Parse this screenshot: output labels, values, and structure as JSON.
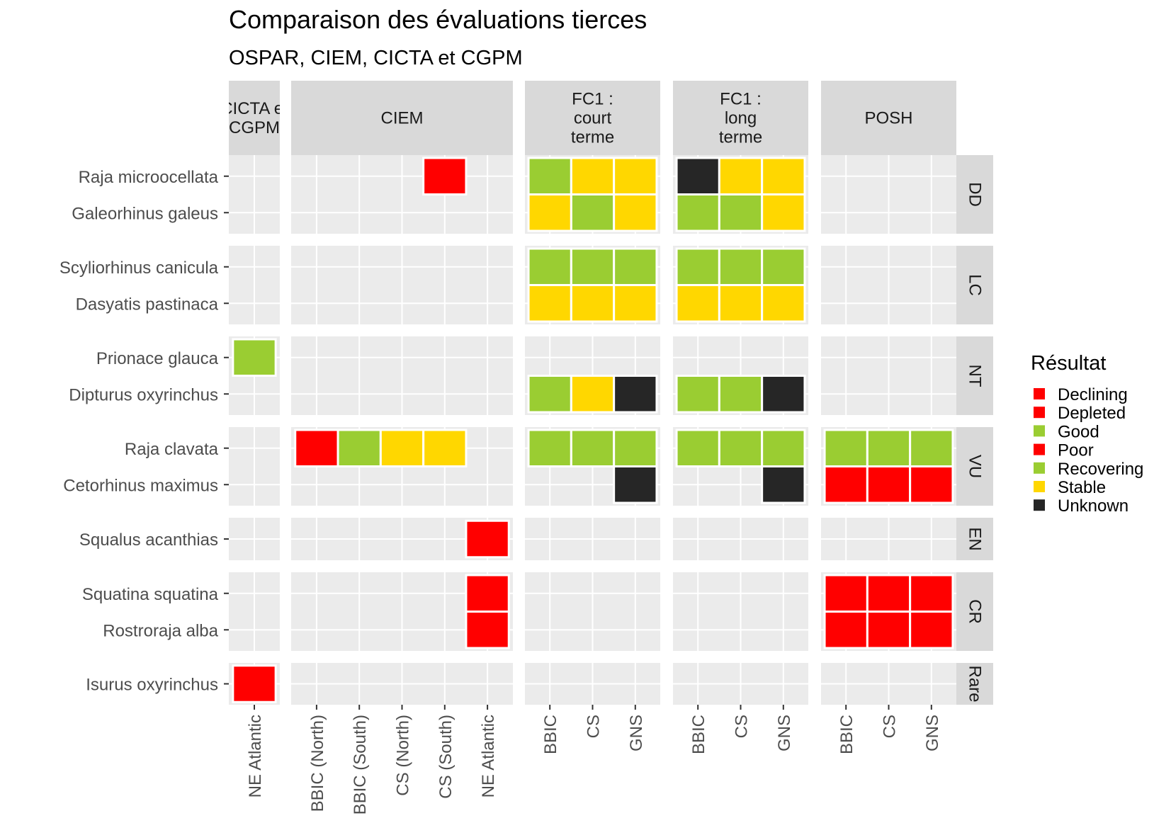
{
  "chart_data": {
    "type": "heatmap",
    "title": "Comparaison des évaluations tierces",
    "subtitle": "OSPAR, CIEM, CICTA et CGPM",
    "legend": {
      "title": "Résultat",
      "position": "right",
      "entries": [
        {
          "label": "Declining",
          "color": "#FF0000"
        },
        {
          "label": "Depleted",
          "color": "#FF0000"
        },
        {
          "label": "Good",
          "color": "#9ACD32"
        },
        {
          "label": "Poor",
          "color": "#FF0000"
        },
        {
          "label": "Recovering",
          "color": "#9ACD32"
        },
        {
          "label": "Stable",
          "color": "#FFD700"
        },
        {
          "label": "Unknown",
          "color": "#262626"
        }
      ]
    },
    "column_panels": [
      {
        "label": [
          "CICTA et",
          "CGPM"
        ],
        "x": [
          "NE Atlantic"
        ]
      },
      {
        "label": [
          "CIEM"
        ],
        "x": [
          "BBIC (North)",
          "BBIC (South)",
          "CS (North)",
          "CS (South)",
          "NE Atlantic"
        ]
      },
      {
        "label": [
          "FC1 :",
          "court",
          "terme"
        ],
        "x": [
          "BBIC",
          "CS",
          "GNS"
        ]
      },
      {
        "label": [
          "FC1 :",
          "long",
          "terme"
        ],
        "x": [
          "BBIC",
          "CS",
          "GNS"
        ]
      },
      {
        "label": [
          "POSH"
        ],
        "x": [
          "BBIC",
          "CS",
          "GNS"
        ]
      }
    ],
    "row_panels": [
      {
        "label": "DD",
        "species": [
          "Raja microocellata",
          "Galeorhinus galeus"
        ]
      },
      {
        "label": "LC",
        "species": [
          "Scyliorhinus canicula",
          "Dasyatis pastinaca"
        ]
      },
      {
        "label": "NT",
        "species": [
          "Prionace glauca",
          "Dipturus oxyrinchus"
        ]
      },
      {
        "label": "VU",
        "species": [
          "Raja clavata",
          "Cetorhinus maximus"
        ]
      },
      {
        "label": "EN",
        "species": [
          "Squalus acanthias"
        ]
      },
      {
        "label": "CR",
        "species": [
          "Squatina squatina",
          "Rostroraja alba"
        ]
      },
      {
        "label": "Rare",
        "species": [
          "Isurus oxyrinchus"
        ]
      }
    ],
    "cells": [
      {
        "col_panel": 1,
        "row_panel": 0,
        "species": "Raja microocellata",
        "x": "CS (South)",
        "result": "Declining"
      },
      {
        "col_panel": 2,
        "row_panel": 0,
        "species": "Raja microocellata",
        "x": "BBIC",
        "result": "Good"
      },
      {
        "col_panel": 2,
        "row_panel": 0,
        "species": "Raja microocellata",
        "x": "CS",
        "result": "Stable"
      },
      {
        "col_panel": 2,
        "row_panel": 0,
        "species": "Raja microocellata",
        "x": "GNS",
        "result": "Stable"
      },
      {
        "col_panel": 2,
        "row_panel": 0,
        "species": "Galeorhinus galeus",
        "x": "BBIC",
        "result": "Stable"
      },
      {
        "col_panel": 2,
        "row_panel": 0,
        "species": "Galeorhinus galeus",
        "x": "CS",
        "result": "Good"
      },
      {
        "col_panel": 2,
        "row_panel": 0,
        "species": "Galeorhinus galeus",
        "x": "GNS",
        "result": "Stable"
      },
      {
        "col_panel": 3,
        "row_panel": 0,
        "species": "Raja microocellata",
        "x": "BBIC",
        "result": "Unknown"
      },
      {
        "col_panel": 3,
        "row_panel": 0,
        "species": "Raja microocellata",
        "x": "CS",
        "result": "Stable"
      },
      {
        "col_panel": 3,
        "row_panel": 0,
        "species": "Raja microocellata",
        "x": "GNS",
        "result": "Stable"
      },
      {
        "col_panel": 3,
        "row_panel": 0,
        "species": "Galeorhinus galeus",
        "x": "BBIC",
        "result": "Good"
      },
      {
        "col_panel": 3,
        "row_panel": 0,
        "species": "Galeorhinus galeus",
        "x": "CS",
        "result": "Good"
      },
      {
        "col_panel": 3,
        "row_panel": 0,
        "species": "Galeorhinus galeus",
        "x": "GNS",
        "result": "Stable"
      },
      {
        "col_panel": 2,
        "row_panel": 1,
        "species": "Scyliorhinus canicula",
        "x": "BBIC",
        "result": "Good"
      },
      {
        "col_panel": 2,
        "row_panel": 1,
        "species": "Scyliorhinus canicula",
        "x": "CS",
        "result": "Good"
      },
      {
        "col_panel": 2,
        "row_panel": 1,
        "species": "Scyliorhinus canicula",
        "x": "GNS",
        "result": "Good"
      },
      {
        "col_panel": 2,
        "row_panel": 1,
        "species": "Dasyatis pastinaca",
        "x": "BBIC",
        "result": "Stable"
      },
      {
        "col_panel": 2,
        "row_panel": 1,
        "species": "Dasyatis pastinaca",
        "x": "CS",
        "result": "Stable"
      },
      {
        "col_panel": 2,
        "row_panel": 1,
        "species": "Dasyatis pastinaca",
        "x": "GNS",
        "result": "Stable"
      },
      {
        "col_panel": 3,
        "row_panel": 1,
        "species": "Scyliorhinus canicula",
        "x": "BBIC",
        "result": "Good"
      },
      {
        "col_panel": 3,
        "row_panel": 1,
        "species": "Scyliorhinus canicula",
        "x": "CS",
        "result": "Good"
      },
      {
        "col_panel": 3,
        "row_panel": 1,
        "species": "Scyliorhinus canicula",
        "x": "GNS",
        "result": "Good"
      },
      {
        "col_panel": 3,
        "row_panel": 1,
        "species": "Dasyatis pastinaca",
        "x": "BBIC",
        "result": "Stable"
      },
      {
        "col_panel": 3,
        "row_panel": 1,
        "species": "Dasyatis pastinaca",
        "x": "CS",
        "result": "Stable"
      },
      {
        "col_panel": 3,
        "row_panel": 1,
        "species": "Dasyatis pastinaca",
        "x": "GNS",
        "result": "Stable"
      },
      {
        "col_panel": 0,
        "row_panel": 2,
        "species": "Prionace glauca",
        "x": "NE Atlantic",
        "result": "Recovering"
      },
      {
        "col_panel": 2,
        "row_panel": 2,
        "species": "Dipturus oxyrinchus",
        "x": "BBIC",
        "result": "Good"
      },
      {
        "col_panel": 2,
        "row_panel": 2,
        "species": "Dipturus oxyrinchus",
        "x": "CS",
        "result": "Stable"
      },
      {
        "col_panel": 2,
        "row_panel": 2,
        "species": "Dipturus oxyrinchus",
        "x": "GNS",
        "result": "Unknown"
      },
      {
        "col_panel": 3,
        "row_panel": 2,
        "species": "Dipturus oxyrinchus",
        "x": "BBIC",
        "result": "Good"
      },
      {
        "col_panel": 3,
        "row_panel": 2,
        "species": "Dipturus oxyrinchus",
        "x": "CS",
        "result": "Good"
      },
      {
        "col_panel": 3,
        "row_panel": 2,
        "species": "Dipturus oxyrinchus",
        "x": "GNS",
        "result": "Unknown"
      },
      {
        "col_panel": 1,
        "row_panel": 3,
        "species": "Raja clavata",
        "x": "BBIC (North)",
        "result": "Declining"
      },
      {
        "col_panel": 1,
        "row_panel": 3,
        "species": "Raja clavata",
        "x": "BBIC (South)",
        "result": "Recovering"
      },
      {
        "col_panel": 1,
        "row_panel": 3,
        "species": "Raja clavata",
        "x": "CS (North)",
        "result": "Stable"
      },
      {
        "col_panel": 1,
        "row_panel": 3,
        "species": "Raja clavata",
        "x": "CS (South)",
        "result": "Stable"
      },
      {
        "col_panel": 2,
        "row_panel": 3,
        "species": "Raja clavata",
        "x": "BBIC",
        "result": "Good"
      },
      {
        "col_panel": 2,
        "row_panel": 3,
        "species": "Raja clavata",
        "x": "CS",
        "result": "Good"
      },
      {
        "col_panel": 2,
        "row_panel": 3,
        "species": "Raja clavata",
        "x": "GNS",
        "result": "Good"
      },
      {
        "col_panel": 2,
        "row_panel": 3,
        "species": "Cetorhinus maximus",
        "x": "GNS",
        "result": "Unknown"
      },
      {
        "col_panel": 3,
        "row_panel": 3,
        "species": "Raja clavata",
        "x": "BBIC",
        "result": "Good"
      },
      {
        "col_panel": 3,
        "row_panel": 3,
        "species": "Raja clavata",
        "x": "CS",
        "result": "Good"
      },
      {
        "col_panel": 3,
        "row_panel": 3,
        "species": "Raja clavata",
        "x": "GNS",
        "result": "Good"
      },
      {
        "col_panel": 3,
        "row_panel": 3,
        "species": "Cetorhinus maximus",
        "x": "GNS",
        "result": "Unknown"
      },
      {
        "col_panel": 4,
        "row_panel": 3,
        "species": "Raja clavata",
        "x": "BBIC",
        "result": "Good"
      },
      {
        "col_panel": 4,
        "row_panel": 3,
        "species": "Raja clavata",
        "x": "CS",
        "result": "Good"
      },
      {
        "col_panel": 4,
        "row_panel": 3,
        "species": "Raja clavata",
        "x": "GNS",
        "result": "Good"
      },
      {
        "col_panel": 4,
        "row_panel": 3,
        "species": "Cetorhinus maximus",
        "x": "BBIC",
        "result": "Poor"
      },
      {
        "col_panel": 4,
        "row_panel": 3,
        "species": "Cetorhinus maximus",
        "x": "CS",
        "result": "Poor"
      },
      {
        "col_panel": 4,
        "row_panel": 3,
        "species": "Cetorhinus maximus",
        "x": "GNS",
        "result": "Poor"
      },
      {
        "col_panel": 1,
        "row_panel": 4,
        "species": "Squalus acanthias",
        "x": "NE Atlantic",
        "result": "Depleted"
      },
      {
        "col_panel": 1,
        "row_panel": 5,
        "species": "Squatina squatina",
        "x": "NE Atlantic",
        "result": "Depleted"
      },
      {
        "col_panel": 1,
        "row_panel": 5,
        "species": "Rostroraja alba",
        "x": "NE Atlantic",
        "result": "Depleted"
      },
      {
        "col_panel": 4,
        "row_panel": 5,
        "species": "Squatina squatina",
        "x": "BBIC",
        "result": "Poor"
      },
      {
        "col_panel": 4,
        "row_panel": 5,
        "species": "Squatina squatina",
        "x": "CS",
        "result": "Poor"
      },
      {
        "col_panel": 4,
        "row_panel": 5,
        "species": "Squatina squatina",
        "x": "GNS",
        "result": "Poor"
      },
      {
        "col_panel": 4,
        "row_panel": 5,
        "species": "Rostroraja alba",
        "x": "BBIC",
        "result": "Poor"
      },
      {
        "col_panel": 4,
        "row_panel": 5,
        "species": "Rostroraja alba",
        "x": "CS",
        "result": "Poor"
      },
      {
        "col_panel": 4,
        "row_panel": 5,
        "species": "Rostroraja alba",
        "x": "GNS",
        "result": "Poor"
      },
      {
        "col_panel": 0,
        "row_panel": 6,
        "species": "Isurus oxyrinchus",
        "x": "NE Atlantic",
        "result": "Declining"
      }
    ],
    "colors": {
      "panel_background": "#EBEBEB",
      "grid": "#FFFFFF",
      "strip_background": "#D9D9D9"
    },
    "grid": true
  }
}
